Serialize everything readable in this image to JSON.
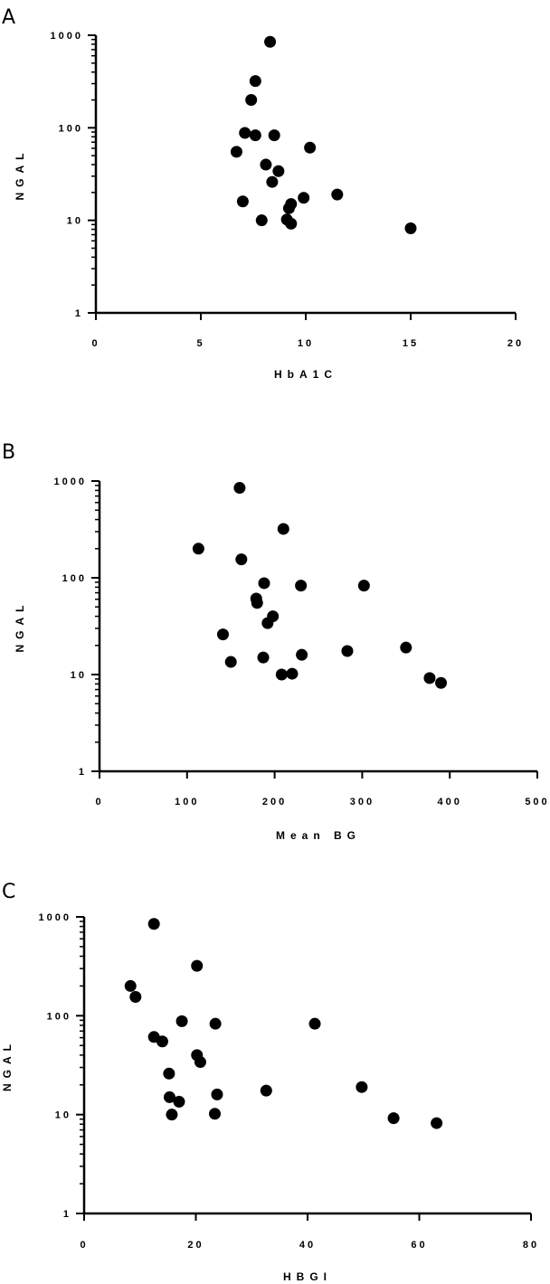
{
  "chart_data": [
    {
      "panel": "A",
      "type": "scatter",
      "xlabel": "HbA1C",
      "ylabel": "NGAL",
      "xlim": [
        0,
        20
      ],
      "ylim": [
        1,
        1000
      ],
      "yscale": "log",
      "xticks": [
        0,
        5,
        10,
        15,
        20
      ],
      "yticks": [
        1,
        10,
        100,
        1000
      ],
      "xtick_labels": [
        "0",
        "5",
        "10",
        "15",
        "20"
      ],
      "ytick_labels": [
        "1",
        "10",
        "100",
        "1000"
      ],
      "grid": false,
      "color": "#000000",
      "points": [
        {
          "x": 8.3,
          "y": 850
        },
        {
          "x": 7.6,
          "y": 320
        },
        {
          "x": 7.4,
          "y": 200
        },
        {
          "x": 7.1,
          "y": 88
        },
        {
          "x": 7.6,
          "y": 83
        },
        {
          "x": 8.5,
          "y": 83
        },
        {
          "x": 6.7,
          "y": 55
        },
        {
          "x": 10.2,
          "y": 61
        },
        {
          "x": 8.1,
          "y": 40
        },
        {
          "x": 8.7,
          "y": 34
        },
        {
          "x": 8.4,
          "y": 26
        },
        {
          "x": 11.5,
          "y": 19
        },
        {
          "x": 9.9,
          "y": 17.5
        },
        {
          "x": 7.0,
          "y": 16
        },
        {
          "x": 9.3,
          "y": 15
        },
        {
          "x": 9.2,
          "y": 13.5
        },
        {
          "x": 7.9,
          "y": 10
        },
        {
          "x": 9.1,
          "y": 10.2
        },
        {
          "x": 9.3,
          "y": 9.2
        },
        {
          "x": 15.0,
          "y": 8.2
        }
      ]
    },
    {
      "panel": "B",
      "type": "scatter",
      "xlabel": "Mean BG",
      "ylabel": "NGAL",
      "xlim": [
        0,
        500
      ],
      "ylim": [
        1,
        1000
      ],
      "yscale": "log",
      "xticks": [
        0,
        100,
        200,
        300,
        400,
        500
      ],
      "yticks": [
        1,
        10,
        100,
        1000
      ],
      "xtick_labels": [
        "0",
        "100",
        "200",
        "300",
        "400",
        "500"
      ],
      "ytick_labels": [
        "1",
        "10",
        "100",
        "1000"
      ],
      "grid": false,
      "color": "#000000",
      "points": [
        {
          "x": 160,
          "y": 850
        },
        {
          "x": 210,
          "y": 320
        },
        {
          "x": 113,
          "y": 200
        },
        {
          "x": 162,
          "y": 155
        },
        {
          "x": 188,
          "y": 88
        },
        {
          "x": 230,
          "y": 83
        },
        {
          "x": 302,
          "y": 83
        },
        {
          "x": 179,
          "y": 61
        },
        {
          "x": 180,
          "y": 55
        },
        {
          "x": 198,
          "y": 40
        },
        {
          "x": 192,
          "y": 34
        },
        {
          "x": 141,
          "y": 26
        },
        {
          "x": 350,
          "y": 19
        },
        {
          "x": 283,
          "y": 17.5
        },
        {
          "x": 231,
          "y": 16
        },
        {
          "x": 187,
          "y": 15
        },
        {
          "x": 150,
          "y": 13.5
        },
        {
          "x": 220,
          "y": 10.2
        },
        {
          "x": 208,
          "y": 10
        },
        {
          "x": 377,
          "y": 9.2
        },
        {
          "x": 390,
          "y": 8.2
        }
      ]
    },
    {
      "panel": "C",
      "type": "scatter",
      "xlabel": "HBGI",
      "ylabel": "NGAL",
      "xlim": [
        0,
        80
      ],
      "ylim": [
        1,
        1000
      ],
      "yscale": "log",
      "xticks": [
        0,
        20,
        40,
        60,
        80
      ],
      "yticks": [
        1,
        10,
        100,
        1000
      ],
      "xtick_labels": [
        "0",
        "20",
        "40",
        "60",
        "80"
      ],
      "ytick_labels": [
        "1",
        "10",
        "100",
        "1000"
      ],
      "grid": false,
      "color": "#000000",
      "points": [
        {
          "x": 12.5,
          "y": 850
        },
        {
          "x": 20.2,
          "y": 320
        },
        {
          "x": 8.3,
          "y": 200
        },
        {
          "x": 9.2,
          "y": 155
        },
        {
          "x": 17.5,
          "y": 88
        },
        {
          "x": 23.5,
          "y": 83
        },
        {
          "x": 41.3,
          "y": 83
        },
        {
          "x": 12.5,
          "y": 61
        },
        {
          "x": 14.0,
          "y": 55
        },
        {
          "x": 20.2,
          "y": 40
        },
        {
          "x": 20.8,
          "y": 34
        },
        {
          "x": 15.2,
          "y": 26
        },
        {
          "x": 49.7,
          "y": 19
        },
        {
          "x": 32.6,
          "y": 17.5
        },
        {
          "x": 23.8,
          "y": 16
        },
        {
          "x": 15.3,
          "y": 15
        },
        {
          "x": 17.0,
          "y": 13.5
        },
        {
          "x": 15.7,
          "y": 10
        },
        {
          "x": 23.4,
          "y": 10.2
        },
        {
          "x": 55.4,
          "y": 9.2
        },
        {
          "x": 63.1,
          "y": 8.2
        }
      ]
    }
  ]
}
